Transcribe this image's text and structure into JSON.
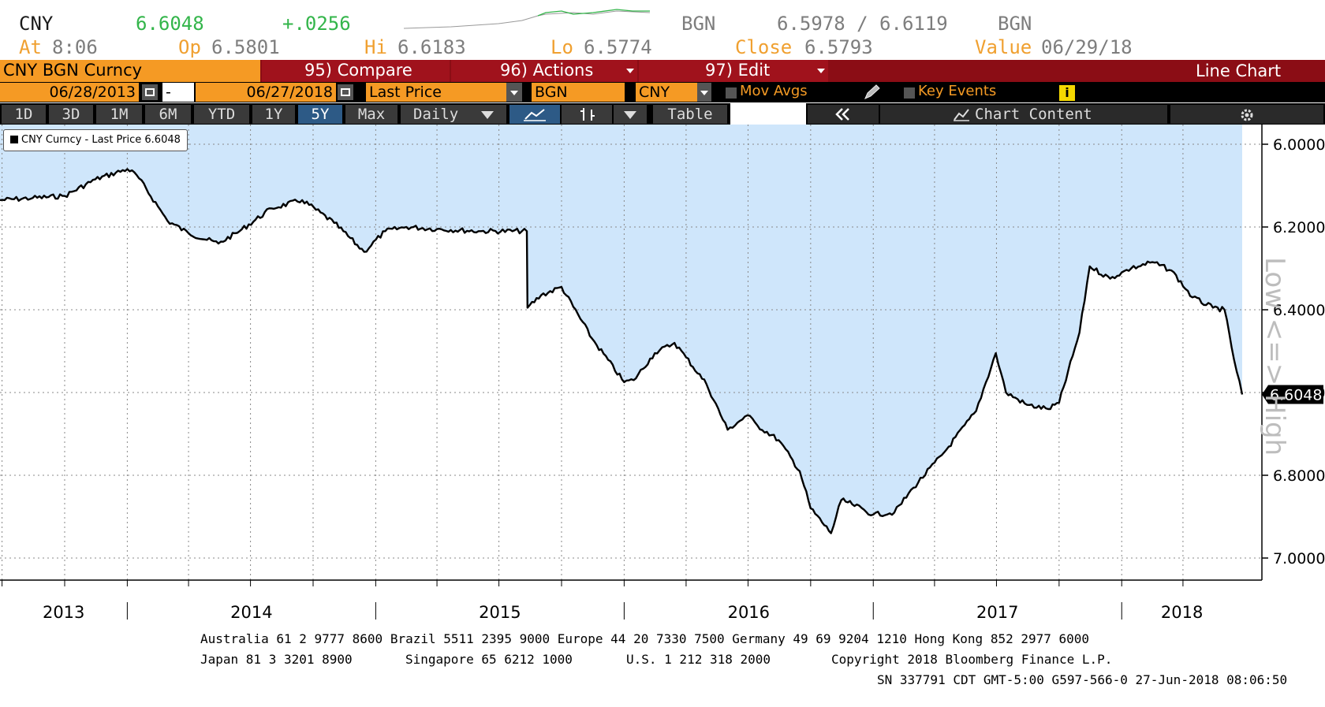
{
  "quote": {
    "ticker": "CNY",
    "last": "6.6048",
    "change": "+.0256",
    "quote_ccy_left": "BGN",
    "bid_ask": "6.5978 / 6.6119",
    "quote_ccy_right": "BGN",
    "at_label": "At",
    "at_time": "8:06",
    "op_label": "Op",
    "op_value": "6.5801",
    "hi_label": "Hi",
    "hi_value": "6.6183",
    "lo_label": "Lo",
    "lo_value": "6.5774",
    "close_label": "Close",
    "close_value": "6.5793",
    "value_label": "Value",
    "value_date": "06/29/18"
  },
  "toolbar": {
    "security": "CNY BGN Curncy",
    "compare": "95) Compare",
    "actions": "96) Actions",
    "edit": "97) Edit",
    "chart_type": "Line Chart"
  },
  "settings": {
    "start_date": "06/28/2013",
    "dash": "-",
    "end_date": "06/27/2018",
    "field": "Last Price",
    "currency": "BGN",
    "security_ccy": "CNY",
    "mov_avgs": "Mov Avgs",
    "key_events": "Key Events",
    "info_icon": "i"
  },
  "periods": {
    "items": [
      "1D",
      "3D",
      "1M",
      "6M",
      "YTD",
      "1Y",
      "5Y",
      "Max"
    ],
    "active": "5Y",
    "frequency": "Daily",
    "table": "Table",
    "chart_content": "Chart Content"
  },
  "colors": {
    "accent_orange": "#f59a24",
    "toolbar_red": "#8b0d15",
    "area_fill": "#cfe6fb",
    "line": "#000000",
    "up_green": "#33b54a"
  },
  "chart_data": {
    "type": "area",
    "legend": "CNY Curncy - Last Price 6.6048",
    "legend_position": "top-left",
    "inverted_axis": true,
    "axis_side_label": "Low <=> High",
    "last_value_label": "6.6048",
    "ylim": [
      6.0,
      7.0
    ],
    "y_ticks": [
      "6.0000",
      "6.2000",
      "6.4000",
      "6.6000",
      "6.8000",
      "7.0000"
    ],
    "x_ticks": [
      "2013",
      "2014",
      "2015",
      "2016",
      "2017",
      "2018"
    ],
    "grid": true,
    "x": [
      "2013-06-28",
      "2013-08-15",
      "2013-10-01",
      "2013-11-15",
      "2014-01-01",
      "2014-01-15",
      "2014-02-15",
      "2014-03-01",
      "2014-04-01",
      "2014-05-15",
      "2014-06-15",
      "2014-08-01",
      "2014-09-15",
      "2014-11-01",
      "2014-12-15",
      "2015-01-15",
      "2015-02-15",
      "2015-04-01",
      "2015-06-01",
      "2015-08-11",
      "2015-08-12",
      "2015-09-01",
      "2015-10-01",
      "2015-11-15",
      "2016-01-01",
      "2016-01-15",
      "2016-02-15",
      "2016-03-15",
      "2016-04-01",
      "2016-05-01",
      "2016-06-01",
      "2016-06-30",
      "2016-07-15",
      "2016-08-15",
      "2016-09-15",
      "2016-10-01",
      "2016-10-31",
      "2016-11-15",
      "2016-12-01",
      "2017-01-01",
      "2017-02-01",
      "2017-03-01",
      "2017-04-15",
      "2017-06-01",
      "2017-06-30",
      "2017-07-15",
      "2017-08-15",
      "2017-09-15",
      "2017-10-01",
      "2017-10-31",
      "2017-11-15",
      "2017-12-15",
      "2018-01-01",
      "2018-01-15",
      "2018-02-15",
      "2018-03-15",
      "2018-04-15",
      "2018-05-15",
      "2018-06-01",
      "2018-06-15",
      "2018-06-27"
    ],
    "values": [
      6.135,
      6.13,
      6.125,
      6.085,
      6.06,
      6.075,
      6.15,
      6.185,
      6.215,
      6.24,
      6.21,
      6.155,
      6.135,
      6.19,
      6.26,
      6.21,
      6.2,
      6.205,
      6.21,
      6.21,
      6.395,
      6.365,
      6.345,
      6.47,
      6.575,
      6.57,
      6.505,
      6.48,
      6.515,
      6.58,
      6.69,
      6.655,
      6.68,
      6.715,
      6.79,
      6.88,
      6.94,
      6.86,
      6.87,
      6.895,
      6.89,
      6.83,
      6.745,
      6.645,
      6.505,
      6.6,
      6.63,
      6.64,
      6.625,
      6.455,
      6.295,
      6.325,
      6.31,
      6.3,
      6.285,
      6.305,
      6.37,
      6.395,
      6.4,
      6.52,
      6.6048
    ]
  },
  "footer": {
    "line1": "Australia 61 2 9777 8600 Brazil 5511 2395 9000 Europe 44 20 7330 7500 Germany 49 69 9204 1210 Hong Kong 852 2977 6000",
    "line2a": "Japan 81 3 3201 8900",
    "line2b": "Singapore 65 6212 1000",
    "line2c": "U.S. 1 212 318 2000",
    "line2d": "Copyright 2018 Bloomberg Finance L.P.",
    "line3": "SN 337791 CDT  GMT-5:00 G597-566-0 27-Jun-2018 08:06:50"
  }
}
